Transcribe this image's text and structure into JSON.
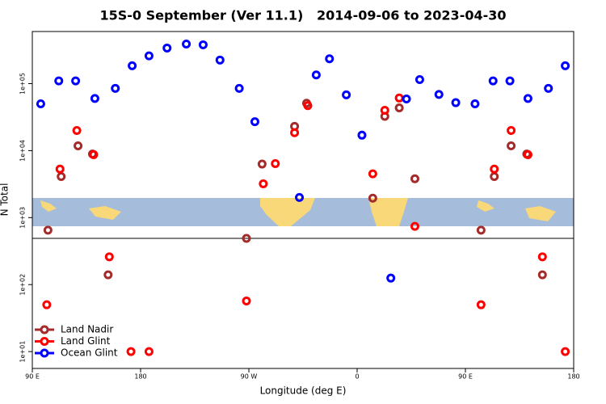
{
  "chart_data": {
    "type": "scatter",
    "title": "15S-0 September (Ver 11.1)   2014-09-06 to 2023-04-30",
    "xlabel": "Longitude (deg E)",
    "ylabel": "N Total",
    "xlim": [
      90,
      540
    ],
    "xticks": [
      {
        "value": 90,
        "label": "90 E"
      },
      180,
      {
        "value": 270,
        "label": "90 W"
      },
      {
        "value": 360,
        "label": "0"
      },
      {
        "value": 450,
        "label": "90 E"
      },
      {
        "value": 540,
        "label": "180"
      }
    ],
    "ylim": [
      5.6,
      600000
    ],
    "log_y": true,
    "yticks": [
      {
        "value": 10,
        "label": "1e+01"
      },
      {
        "value": 100,
        "label": "1e+02"
      },
      {
        "value": 1000,
        "label": "1e+03"
      },
      {
        "value": 10000,
        "label": "1e+04"
      },
      {
        "value": 100000,
        "label": "1e+05"
      }
    ],
    "legend": "bottom-left",
    "series": [
      {
        "name": "Land Nadir",
        "color": "#a52a2a",
        "x": [
          103,
          114,
          128,
          140,
          153,
          268,
          281,
          308,
          318,
          373,
          383,
          395,
          408,
          463,
          474,
          488,
          501,
          514
        ],
        "values": [
          650,
          4100,
          11800,
          8900,
          140,
          490,
          6300,
          23000,
          51000,
          1950,
          32500,
          43500,
          3800,
          650,
          4100,
          11800,
          8900,
          140
        ]
      },
      {
        "name": "Land Glint",
        "color": "#ff0000",
        "x": [
          102,
          113,
          127,
          141,
          154,
          172,
          187,
          268,
          282,
          292,
          308,
          319,
          373,
          383,
          395,
          408,
          463,
          474,
          488,
          502,
          514,
          533
        ],
        "values": [
          50,
          5300,
          20000,
          8700,
          260,
          10,
          10,
          57,
          3200,
          6400,
          18500,
          47000,
          4500,
          40000,
          61000,
          740,
          50,
          5300,
          20000,
          8700,
          260,
          10
        ]
      },
      {
        "name": "Ocean Glint",
        "color": "#0000ff",
        "x": [
          97,
          112,
          126,
          142,
          159,
          173,
          187,
          202,
          218,
          232,
          246,
          262,
          275,
          312,
          326,
          337,
          351,
          364,
          388,
          401,
          412,
          428,
          442,
          458,
          473,
          487,
          502,
          519,
          533
        ],
        "values": [
          50000,
          110000,
          110000,
          60000,
          85000,
          185000,
          260000,
          340000,
          390000,
          380000,
          225000,
          85000,
          27000,
          2000,
          135000,
          235000,
          68000,
          17000,
          125,
          59000,
          115000,
          69000,
          52000,
          50000,
          110000,
          110000,
          60000,
          85000,
          185000
        ]
      }
    ]
  }
}
